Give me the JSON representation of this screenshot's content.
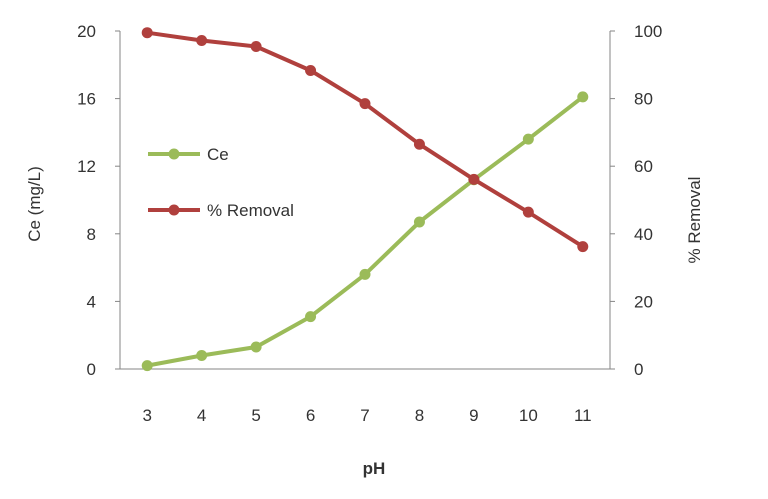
{
  "chart_data": {
    "type": "line",
    "x": [
      3,
      4,
      5,
      6,
      7,
      8,
      9,
      10,
      11
    ],
    "x_tick_labels": [
      "3",
      "4",
      "5",
      "6",
      "7",
      "8",
      "9",
      "10",
      "11"
    ],
    "xlabel": "pH",
    "ylabel_left": "Ce (mg/L)",
    "ylabel_right": "% Removal",
    "ylim_left": [
      0,
      20
    ],
    "ylim_right": [
      0,
      100
    ],
    "y_left_ticks": [
      "0",
      "4",
      "8",
      "12",
      "16",
      "20"
    ],
    "y_right_ticks": [
      "0",
      "20",
      "40",
      "60",
      "80",
      "100"
    ],
    "grid": false,
    "legend_position": "center-left",
    "series": [
      {
        "name": "Ce",
        "axis": "left",
        "color": "#9BBB59",
        "values": [
          0.2,
          0.8,
          1.3,
          3.1,
          5.6,
          8.7,
          11.2,
          13.6,
          16.1
        ]
      },
      {
        "name": "% Removal",
        "axis": "right",
        "color": "#B0403D",
        "values": [
          99.5,
          97.2,
          95.4,
          88.3,
          78.5,
          66.5,
          56.1,
          46.4,
          36.2
        ]
      }
    ]
  }
}
